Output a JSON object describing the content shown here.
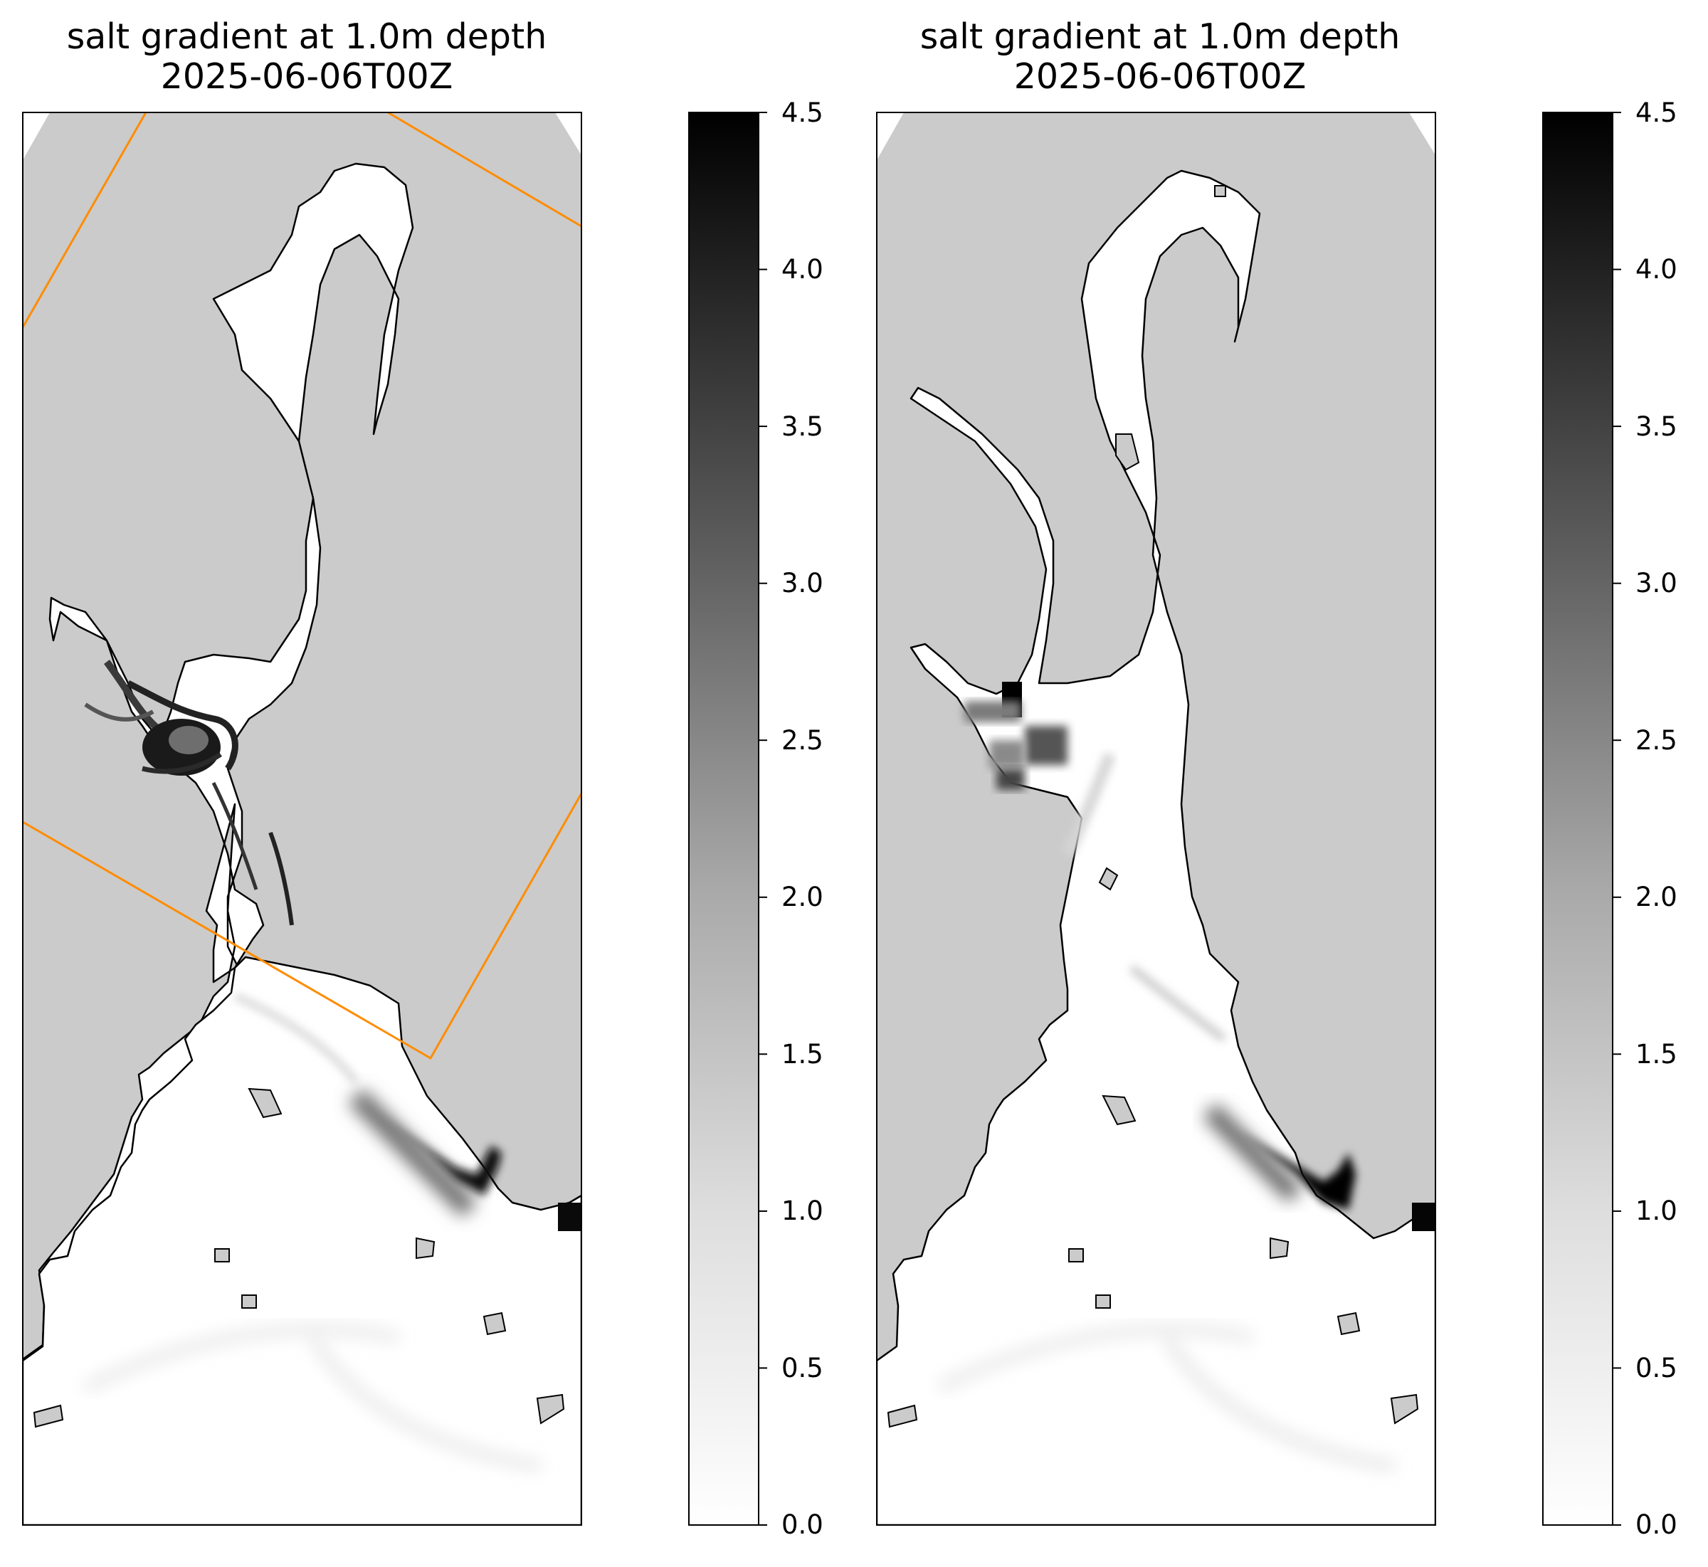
{
  "colors": {
    "land": "#cbcbcb",
    "water_low": "#ffffff",
    "water_high": "#000000",
    "subdomain_box": "#ff8c00",
    "coastline": "#000000"
  },
  "panels": [
    {
      "title_line1": "salt gradient at 1.0m depth",
      "title_line2": "2025-06-06T00Z",
      "resolution": "fine",
      "shows_subdomain_box": true
    },
    {
      "title_line1": "salt gradient at 1.0m depth",
      "title_line2": "2025-06-06T00Z",
      "resolution": "coarse",
      "shows_subdomain_box": false
    }
  ],
  "colorbars": [
    {
      "colormap": "grayscale (white to black)",
      "ticks": [
        "0.0",
        "0.5",
        "1.0",
        "1.5",
        "2.0",
        "2.5",
        "3.0",
        "3.5",
        "4.0",
        "4.5"
      ]
    },
    {
      "colormap": "grayscale (white to black)",
      "ticks": [
        "0.0",
        "0.5",
        "1.0",
        "1.5",
        "2.0",
        "2.5",
        "3.0",
        "3.5",
        "4.0",
        "4.5"
      ]
    }
  ],
  "chart_data": [
    {
      "type": "heatmap",
      "title": "salt gradient at 1.0m depth\n2025-06-06T00Z",
      "variable": "salt gradient",
      "depth": "1.0m",
      "time": "2025-06-06T00Z",
      "colorbar_range": [
        0.0,
        4.5
      ],
      "colorbar_ticks": [
        0.0,
        0.5,
        1.0,
        1.5,
        2.0,
        2.5,
        3.0,
        3.5,
        4.0,
        4.5
      ],
      "axes_ticks_visible": false,
      "features": [
        {
          "region": "west-arm eddy (mid-left)",
          "value": 4.5
        },
        {
          "region": "south-east channel (lower right)",
          "value": 4.5
        },
        {
          "region": "open water (bottom)",
          "value": 0.1
        },
        {
          "region": "main channels",
          "value": 0.5
        }
      ]
    },
    {
      "type": "heatmap",
      "title": "salt gradient at 1.0m depth\n2025-06-06T00Z",
      "variable": "salt gradient",
      "depth": "1.0m",
      "time": "2025-06-06T00Z",
      "colorbar_range": [
        0.0,
        4.5
      ],
      "colorbar_ticks": [
        0.0,
        0.5,
        1.0,
        1.5,
        2.0,
        2.5,
        3.0,
        3.5,
        4.0,
        4.5
      ],
      "axes_ticks_visible": false,
      "features": [
        {
          "region": "west-arm junction (mid-left)",
          "value": 4.5
        },
        {
          "region": "south-east channel (lower right)",
          "value": 4.5
        },
        {
          "region": "open water (bottom)",
          "value": 0.1
        },
        {
          "region": "main channels",
          "value": 0.4
        }
      ]
    }
  ]
}
